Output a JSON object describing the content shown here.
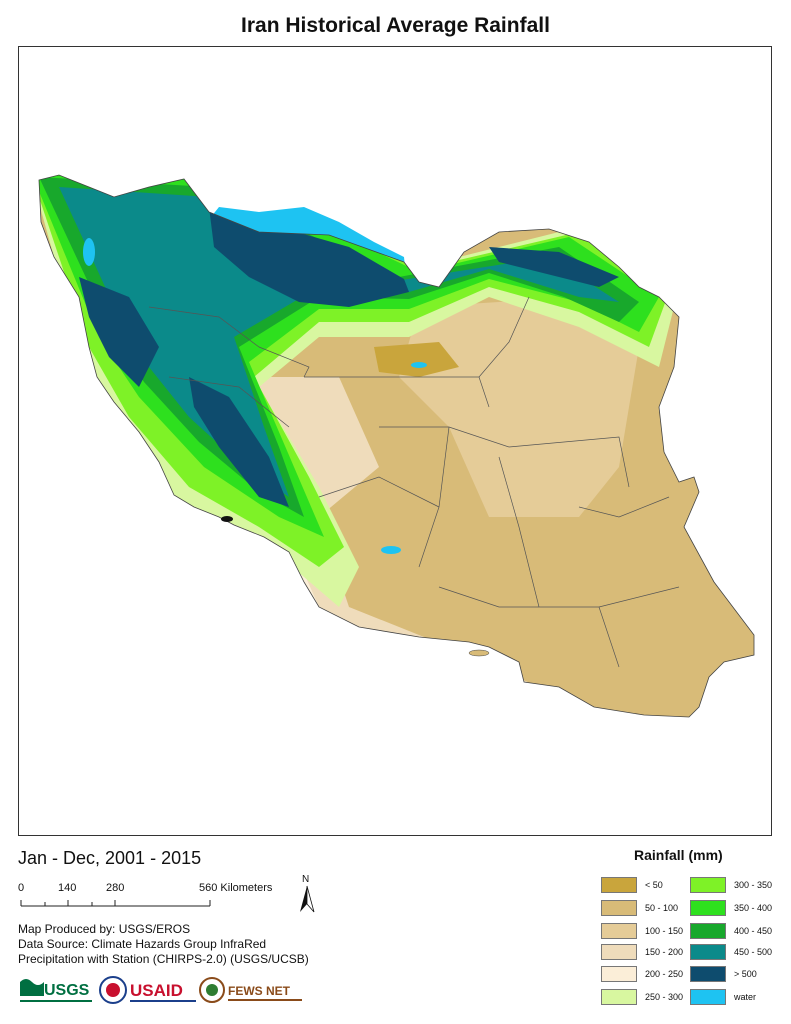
{
  "title": "Iran Historical Average Rainfall",
  "period": "Jan - Dec, 2001 - 2015",
  "scale": {
    "labels": [
      "0",
      "140",
      "280",
      "560 Kilometers"
    ]
  },
  "north_label": "N",
  "credits": [
    "Map Produced by: USGS/EROS",
    "Data Source: Climate Hazards Group InfraRed",
    "Precipitation with Station (CHIRPS-2.0) (USGS/UCSB)"
  ],
  "logos": {
    "usgs": "USGS",
    "usaid": "USAID",
    "fewsnet": "FEWS NET"
  },
  "legend": {
    "title": "Rainfall (mm)",
    "items": [
      {
        "label": "< 50",
        "color": "#c9a53c"
      },
      {
        "label": "50 - 100",
        "color": "#d8bb78"
      },
      {
        "label": "100 - 150",
        "color": "#e5cc98"
      },
      {
        "label": "150 - 200",
        "color": "#efdcbb"
      },
      {
        "label": "200 - 250",
        "color": "#fbeed8"
      },
      {
        "label": "250 - 300",
        "color": "#d8f7a0"
      },
      {
        "label": "300 - 350",
        "color": "#7ef227"
      },
      {
        "label": "350 - 400",
        "color": "#2ee01e"
      },
      {
        "label": "400 - 450",
        "color": "#18a82c"
      },
      {
        "label": "450 - 500",
        "color": "#0b8a8a"
      },
      {
        "label": "> 500",
        "color": "#0e4c6e"
      },
      {
        "label": "water",
        "color": "#1ec3f2"
      }
    ]
  },
  "map_colors": {
    "water": "#1ec3f2",
    "wettest": "#0e4c6e",
    "dry": "#d8bb78",
    "border": "#555555"
  }
}
